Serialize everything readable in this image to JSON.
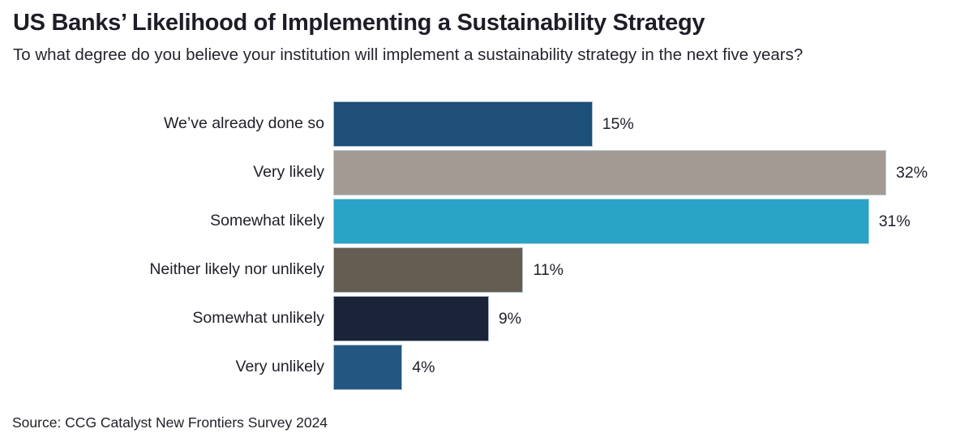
{
  "page": {
    "background": "#ffffff"
  },
  "chart_data": {
    "type": "bar",
    "orientation": "horizontal",
    "title": "US Banks’ Likelihood of Implementing a Sustainability Strategy",
    "subtitle": "To what degree do you believe your institution will implement a sustainability strategy in the next five years?",
    "categories": [
      "We’ve already done so",
      "Very likely",
      "Somewhat likely",
      "Neither likely nor unlikely",
      "Somewhat unlikely",
      "Very unlikely"
    ],
    "values": [
      15,
      32,
      31,
      11,
      9,
      4
    ],
    "value_labels": [
      "15%",
      "32%",
      "31%",
      "11%",
      "9%",
      "4%"
    ],
    "bar_colors": [
      "#1d4f78",
      "#a39b93",
      "#29a3c6",
      "#655d52",
      "#1b2338",
      "#235680"
    ],
    "xlim": [
      0,
      32
    ],
    "grid": false,
    "legend": false,
    "value_label_position": "outside-end"
  },
  "source": "Source: CCG Catalyst New Frontiers Survey 2024",
  "colors": {
    "title_text": "#1e1d27",
    "body_text": "#26252e",
    "label_text": "#1f1f28"
  }
}
